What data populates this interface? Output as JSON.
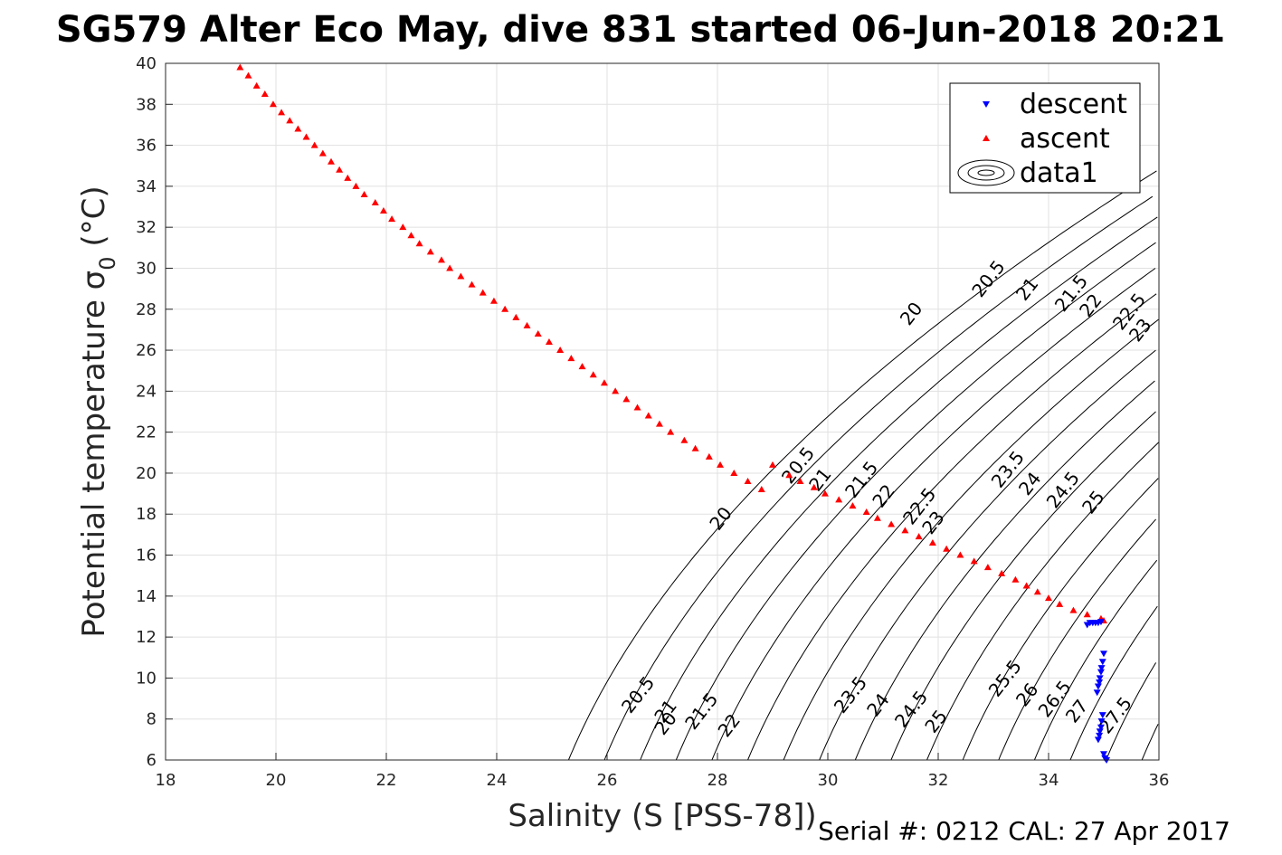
{
  "chart_data": {
    "type": "scatter",
    "title": "SG579 Alter Eco May, dive 831 started 06-Jun-2018 20:21",
    "xlabel": "Salinity (S [PSS-78])",
    "ylabel": "Potential temperature σ",
    "ylabel_subscript": "0",
    "ylabel_unit": " (°C)",
    "footer": "Serial #: 0212  CAL: 27 Apr 2017",
    "xlim": [
      18,
      36
    ],
    "ylim": [
      6,
      40
    ],
    "x_ticks": [
      "18",
      "20",
      "22",
      "24",
      "26",
      "28",
      "30",
      "32",
      "34",
      "36"
    ],
    "y_ticks": [
      "6",
      "8",
      "10",
      "12",
      "14",
      "16",
      "18",
      "20",
      "22",
      "24",
      "26",
      "28",
      "30",
      "32",
      "34",
      "36",
      "38",
      "40"
    ],
    "grid": true,
    "legend_position": "top-right",
    "series": [
      {
        "name": "descent",
        "marker": "triangle-down",
        "color": "#0000ff",
        "points": [
          [
            34.7,
            12.6
          ],
          [
            34.75,
            12.7
          ],
          [
            34.8,
            12.7
          ],
          [
            34.85,
            12.7
          ],
          [
            34.9,
            12.7
          ],
          [
            34.95,
            12.75
          ],
          [
            35.0,
            11.2
          ],
          [
            34.98,
            10.8
          ],
          [
            34.96,
            10.5
          ],
          [
            34.95,
            10.3
          ],
          [
            34.93,
            10.0
          ],
          [
            34.92,
            9.8
          ],
          [
            34.9,
            9.6
          ],
          [
            34.88,
            9.3
          ],
          [
            34.98,
            8.2
          ],
          [
            34.96,
            7.9
          ],
          [
            34.95,
            7.6
          ],
          [
            34.93,
            7.4
          ],
          [
            34.92,
            7.2
          ],
          [
            34.9,
            7.0
          ],
          [
            35.0,
            6.3
          ],
          [
            35.02,
            6.1
          ],
          [
            35.05,
            6.0
          ]
        ]
      },
      {
        "name": "ascent",
        "marker": "triangle-up",
        "color": "#ff0000",
        "points": [
          [
            19.35,
            39.8
          ],
          [
            19.5,
            39.4
          ],
          [
            19.65,
            38.9
          ],
          [
            19.8,
            38.5
          ],
          [
            19.95,
            38.0
          ],
          [
            20.1,
            37.6
          ],
          [
            20.25,
            37.2
          ],
          [
            20.4,
            36.8
          ],
          [
            20.55,
            36.4
          ],
          [
            20.7,
            36.0
          ],
          [
            20.85,
            35.6
          ],
          [
            21.0,
            35.2
          ],
          [
            21.15,
            34.8
          ],
          [
            21.3,
            34.4
          ],
          [
            21.45,
            34.0
          ],
          [
            21.6,
            33.6
          ],
          [
            21.8,
            33.2
          ],
          [
            21.95,
            32.8
          ],
          [
            22.1,
            32.4
          ],
          [
            22.3,
            32.0
          ],
          [
            22.45,
            31.6
          ],
          [
            22.6,
            31.2
          ],
          [
            22.8,
            30.8
          ],
          [
            23.0,
            30.4
          ],
          [
            23.15,
            30.0
          ],
          [
            23.35,
            29.6
          ],
          [
            23.55,
            29.2
          ],
          [
            23.75,
            28.8
          ],
          [
            23.95,
            28.4
          ],
          [
            24.15,
            28.0
          ],
          [
            24.35,
            27.6
          ],
          [
            24.55,
            27.2
          ],
          [
            24.75,
            26.8
          ],
          [
            24.95,
            26.4
          ],
          [
            25.15,
            26.0
          ],
          [
            25.35,
            25.6
          ],
          [
            25.55,
            25.2
          ],
          [
            25.75,
            24.8
          ],
          [
            25.95,
            24.4
          ],
          [
            26.15,
            24.0
          ],
          [
            26.35,
            23.6
          ],
          [
            26.55,
            23.2
          ],
          [
            26.75,
            22.8
          ],
          [
            26.95,
            22.4
          ],
          [
            27.15,
            22.0
          ],
          [
            27.4,
            21.6
          ],
          [
            27.6,
            21.2
          ],
          [
            27.85,
            20.8
          ],
          [
            28.05,
            20.4
          ],
          [
            28.3,
            20.0
          ],
          [
            28.55,
            19.6
          ],
          [
            28.8,
            19.2
          ],
          [
            29.0,
            20.4
          ],
          [
            29.3,
            19.9
          ],
          [
            29.5,
            19.6
          ],
          [
            29.75,
            19.3
          ],
          [
            29.95,
            19.0
          ],
          [
            30.2,
            18.7
          ],
          [
            30.45,
            18.4
          ],
          [
            30.7,
            18.1
          ],
          [
            30.9,
            17.8
          ],
          [
            31.15,
            17.5
          ],
          [
            31.4,
            17.2
          ],
          [
            31.65,
            16.9
          ],
          [
            31.9,
            16.6
          ],
          [
            32.15,
            16.3
          ],
          [
            32.4,
            16.0
          ],
          [
            32.65,
            15.7
          ],
          [
            32.9,
            15.4
          ],
          [
            33.15,
            15.1
          ],
          [
            33.4,
            14.8
          ],
          [
            33.6,
            14.5
          ],
          [
            33.8,
            14.2
          ],
          [
            34.0,
            13.9
          ],
          [
            34.2,
            13.6
          ],
          [
            34.45,
            13.3
          ],
          [
            34.7,
            13.1
          ],
          [
            34.95,
            12.9
          ],
          [
            35.0,
            12.8
          ]
        ]
      },
      {
        "name": "data1",
        "marker": "contour",
        "color": "#000000"
      }
    ],
    "contour_levels": [
      20,
      20.5,
      21,
      21.5,
      22,
      22.5,
      23,
      23.5,
      24,
      24.5,
      25,
      25.5,
      26,
      26.5,
      27,
      27.5,
      28
    ],
    "contour_labels": [
      {
        "text": "20",
        "x": 27.15,
        "y": 7.6
      },
      {
        "text": "20.5",
        "x": 26.65,
        "y": 9.0
      },
      {
        "text": "21",
        "x": 27.15,
        "y": 8.2
      },
      {
        "text": "21.5",
        "x": 27.8,
        "y": 8.2
      },
      {
        "text": "22",
        "x": 28.3,
        "y": 7.5
      },
      {
        "text": "23.5",
        "x": 30.5,
        "y": 9.0
      },
      {
        "text": "24",
        "x": 31.0,
        "y": 8.5
      },
      {
        "text": "24.5",
        "x": 31.6,
        "y": 8.3
      },
      {
        "text": "25",
        "x": 32.05,
        "y": 7.7
      },
      {
        "text": "25.5",
        "x": 33.3,
        "y": 9.8
      },
      {
        "text": "26",
        "x": 33.7,
        "y": 9.0
      },
      {
        "text": "26.5",
        "x": 34.2,
        "y": 8.8
      },
      {
        "text": "27",
        "x": 34.6,
        "y": 8.2
      },
      {
        "text": "27.5",
        "x": 35.3,
        "y": 8.0
      },
      {
        "text": "20",
        "x": 28.15,
        "y": 17.6
      },
      {
        "text": "20.5",
        "x": 29.55,
        "y": 20.2
      },
      {
        "text": "21",
        "x": 29.95,
        "y": 19.5
      },
      {
        "text": "21.5",
        "x": 30.7,
        "y": 19.5
      },
      {
        "text": "22",
        "x": 31.1,
        "y": 18.7
      },
      {
        "text": "22.5",
        "x": 31.75,
        "y": 18.2
      },
      {
        "text": "23",
        "x": 32.0,
        "y": 17.4
      },
      {
        "text": "23.5",
        "x": 33.35,
        "y": 20.0
      },
      {
        "text": "24",
        "x": 33.75,
        "y": 19.3
      },
      {
        "text": "24.5",
        "x": 34.35,
        "y": 19.0
      },
      {
        "text": "25",
        "x": 34.9,
        "y": 18.4
      },
      {
        "text": "20",
        "x": 31.6,
        "y": 27.6
      },
      {
        "text": "20.5",
        "x": 33.0,
        "y": 29.3
      },
      {
        "text": "21",
        "x": 33.7,
        "y": 28.8
      },
      {
        "text": "21.5",
        "x": 34.5,
        "y": 28.6
      },
      {
        "text": "22",
        "x": 34.85,
        "y": 28.0
      },
      {
        "text": "22.5",
        "x": 35.55,
        "y": 27.7
      },
      {
        "text": "23",
        "x": 35.75,
        "y": 26.8
      }
    ]
  }
}
